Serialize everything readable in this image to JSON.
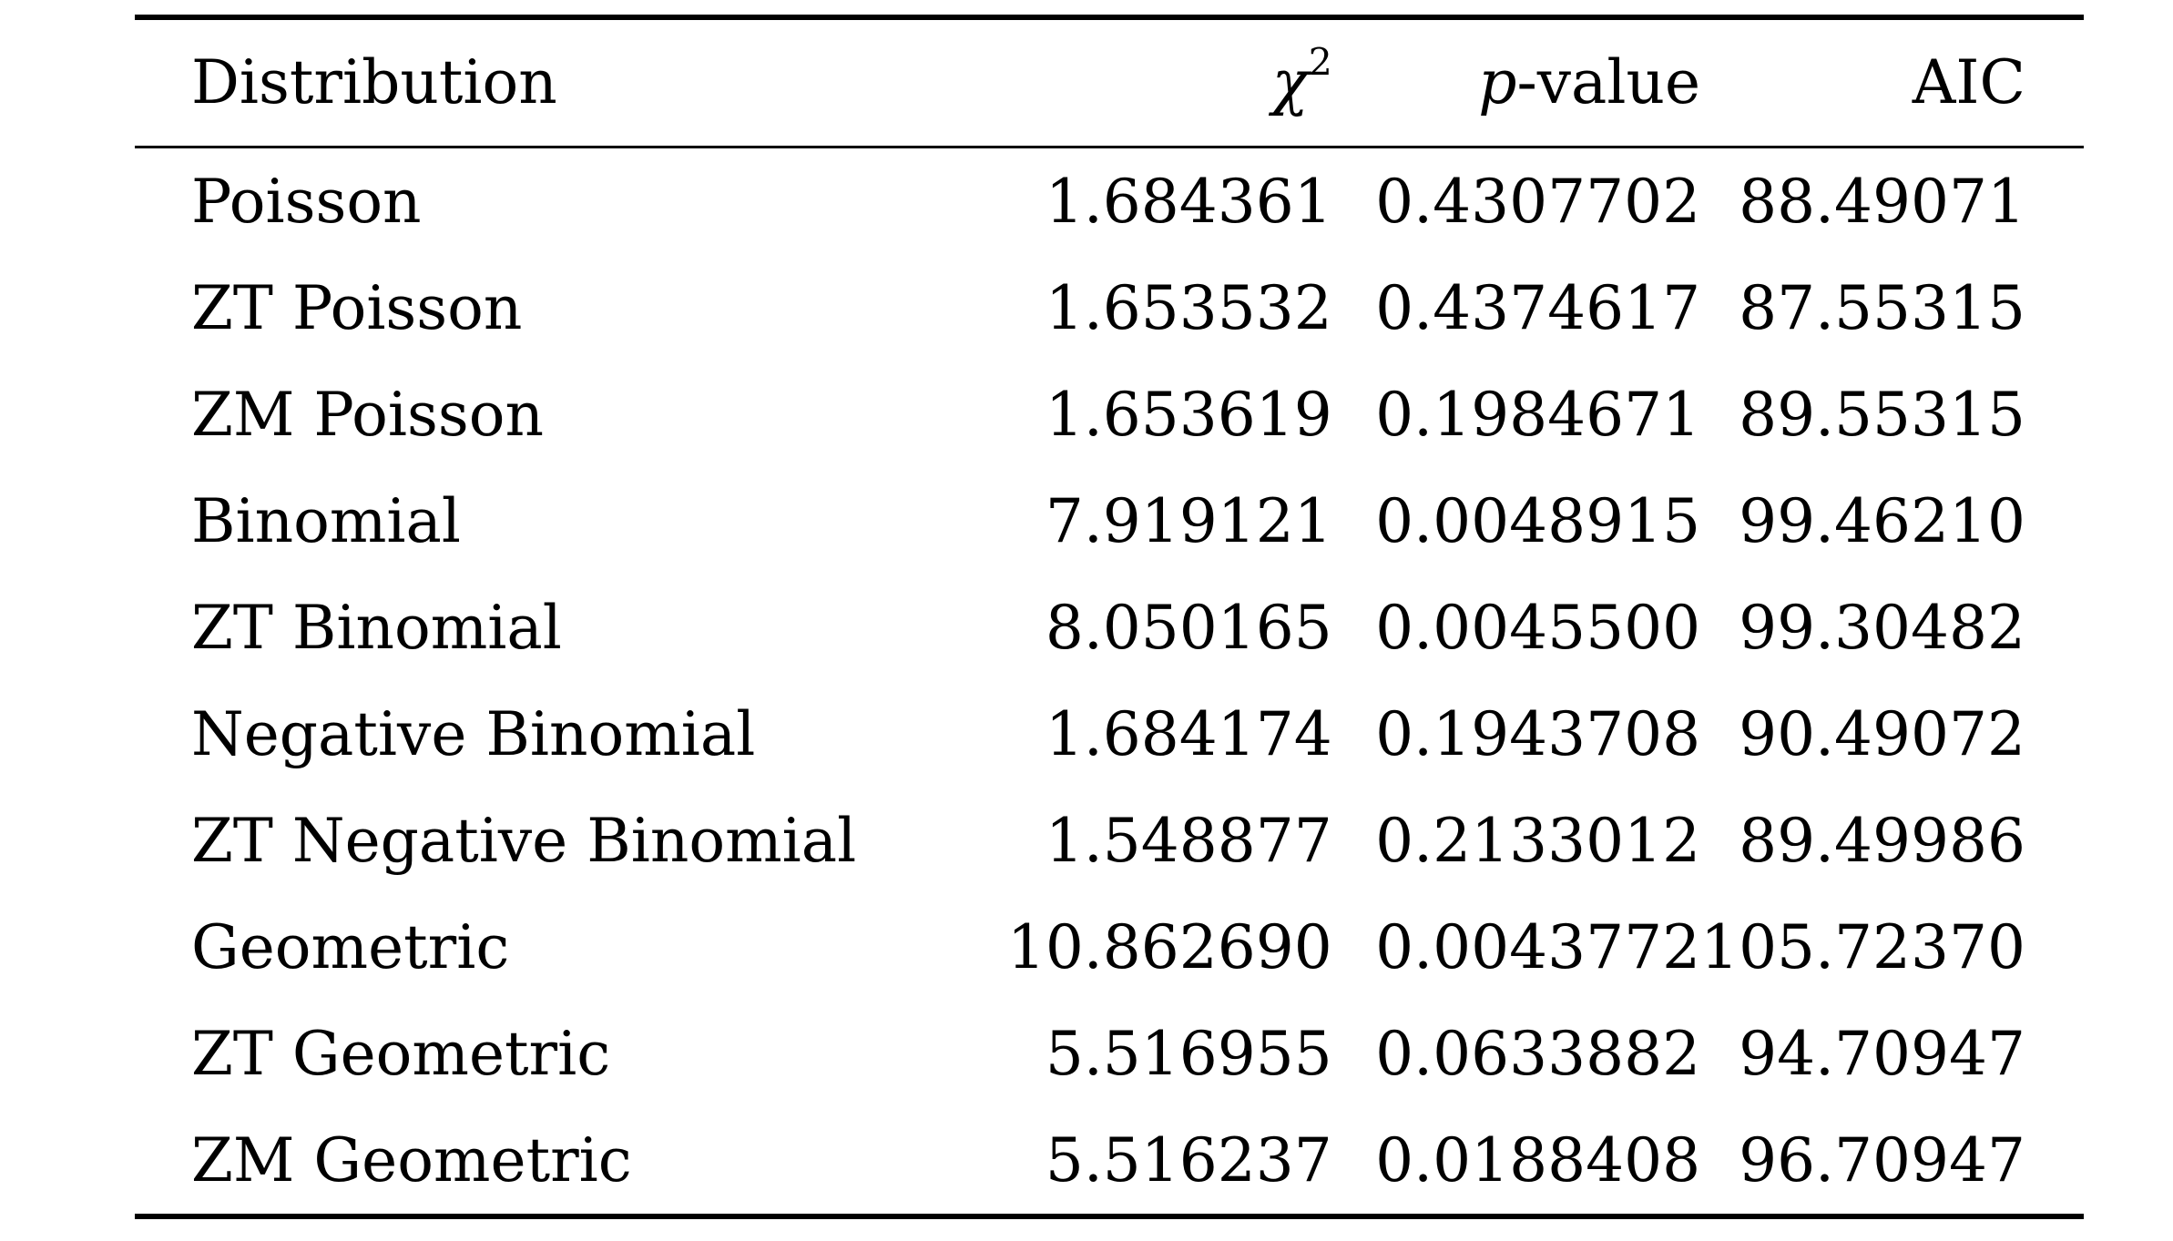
{
  "table": {
    "headers": {
      "distribution": "Distribution",
      "chi_symbol": "χ",
      "chi_exponent": "2",
      "p_prefix": "p",
      "p_suffix": "-value",
      "aic": "AIC"
    },
    "rows": [
      {
        "distribution": "Poisson",
        "chi2": "1.684361",
        "p_value": "0.4307702",
        "aic": "88.49071"
      },
      {
        "distribution": "ZT Poisson",
        "chi2": "1.653532",
        "p_value": "0.4374617",
        "aic": "87.55315"
      },
      {
        "distribution": "ZM Poisson",
        "chi2": "1.653619",
        "p_value": "0.1984671",
        "aic": "89.55315"
      },
      {
        "distribution": "Binomial",
        "chi2": "7.919121",
        "p_value": "0.0048915",
        "aic": "99.46210"
      },
      {
        "distribution": "ZT Binomial",
        "chi2": "8.050165",
        "p_value": "0.0045500",
        "aic": "99.30482"
      },
      {
        "distribution": "Negative Binomial",
        "chi2": "1.684174",
        "p_value": "0.1943708",
        "aic": "90.49072"
      },
      {
        "distribution": "ZT Negative Binomial",
        "chi2": "1.548877",
        "p_value": "0.2133012",
        "aic": "89.49986"
      },
      {
        "distribution": "Geometric",
        "chi2": "10.862690",
        "p_value": "0.0043772",
        "aic": "105.72370"
      },
      {
        "distribution": "ZT Geometric",
        "chi2": "5.516955",
        "p_value": "0.0633882",
        "aic": "94.70947"
      },
      {
        "distribution": "ZM Geometric",
        "chi2": "5.516237",
        "p_value": "0.0188408",
        "aic": "96.70947"
      }
    ]
  }
}
